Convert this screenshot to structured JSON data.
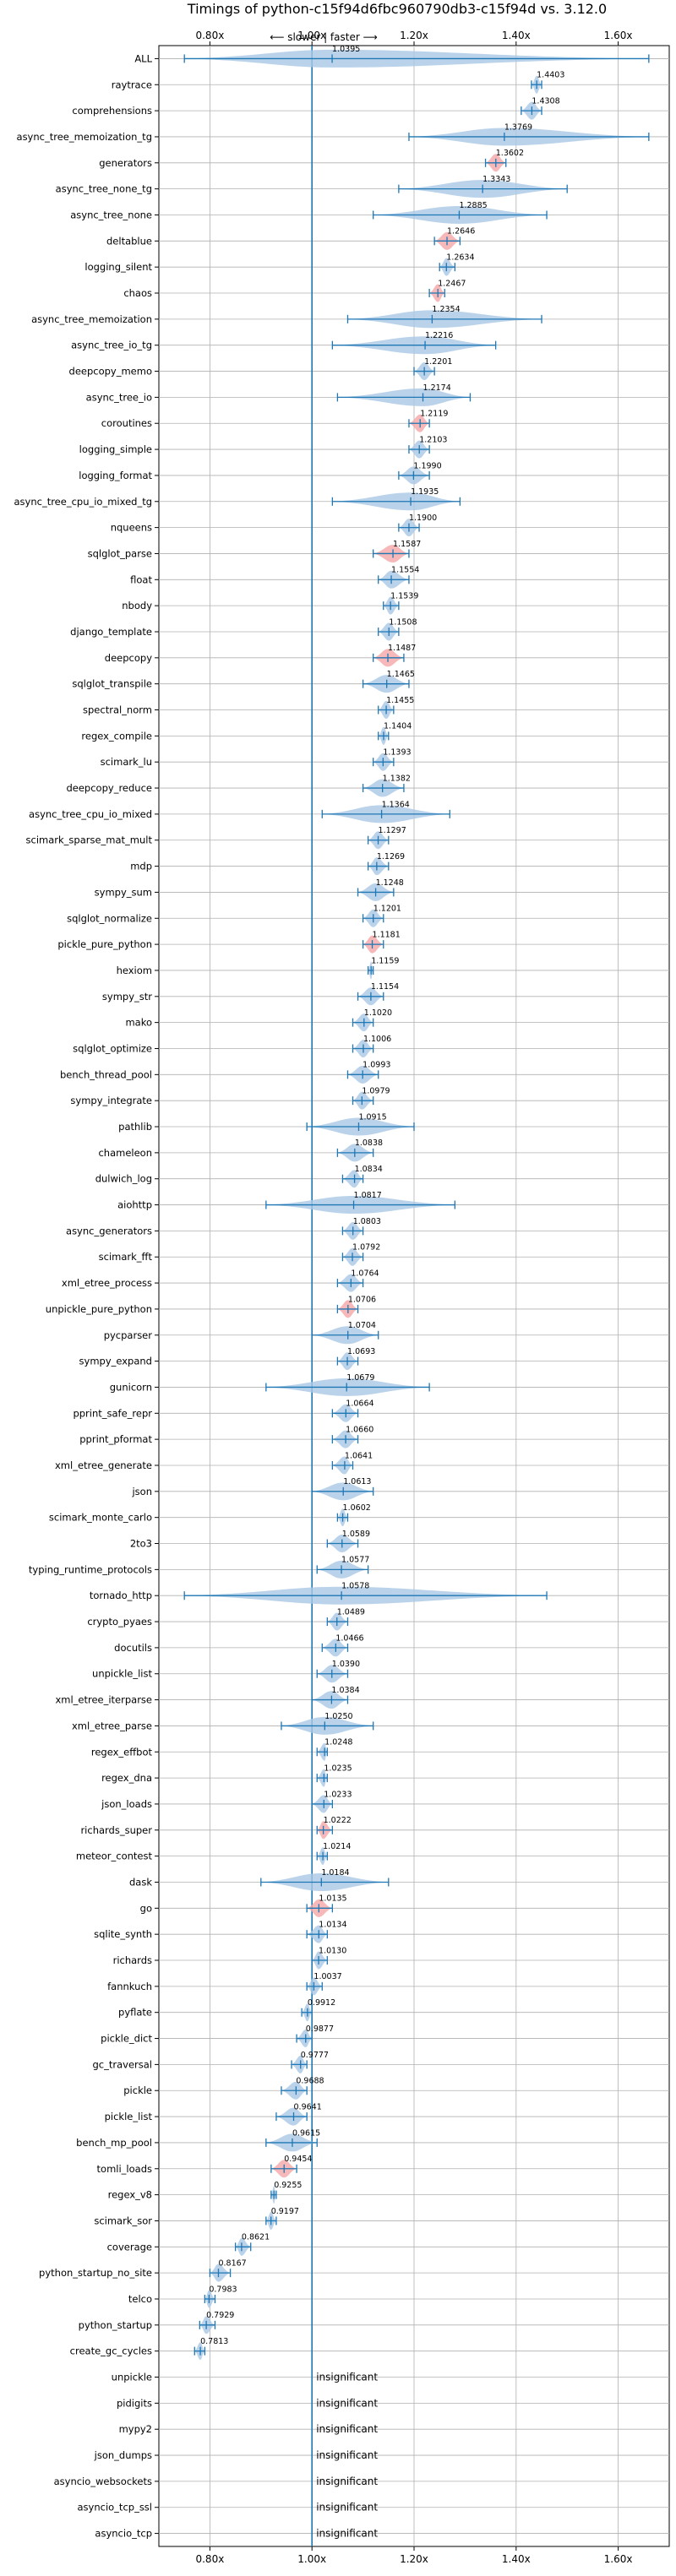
{
  "chart_data": {
    "type": "violin",
    "title": "Timings of python-c15f94d6fbc960790db3-c15f94d vs. 3.12.0",
    "direction_label": "⟵ slower | faster ⟶",
    "xlabel": "",
    "ylabel": "",
    "xlim": [
      0.7,
      1.7
    ],
    "x_ticks": [
      0.8,
      1.0,
      1.2,
      1.4,
      1.6
    ],
    "x_tick_labels": [
      "0.80x",
      "1.00x",
      "1.20x",
      "1.40x",
      "1.60x"
    ],
    "ticks_top_and_bottom": true,
    "grid": true,
    "reference_line": 1.0,
    "colors": {
      "violin": "#a9c8e6",
      "violin_highlight": "#f4a6a6",
      "errorbar": "#1f77b4",
      "line": "#1f77b4",
      "grid": "#b0b0b0"
    },
    "insignificant_label": "insignificant",
    "benchmarks": [
      {
        "name": "ALL",
        "value": 1.0395,
        "label": "1.0395",
        "lo": 0.75,
        "hi": 1.66,
        "spread": 0.06
      },
      {
        "name": "raytrace",
        "value": 1.4403,
        "label": "1.4403",
        "lo": 1.43,
        "hi": 1.45,
        "spread": 0.01
      },
      {
        "name": "comprehensions",
        "value": 1.4308,
        "label": "1.4308",
        "lo": 1.41,
        "hi": 1.45,
        "spread": 0.02
      },
      {
        "name": "async_tree_memoization_tg",
        "value": 1.3769,
        "label": "1.3769",
        "lo": 1.19,
        "hi": 1.66,
        "spread": 0.2
      },
      {
        "name": "generators",
        "value": 1.3602,
        "label": "1.3602",
        "lo": 1.34,
        "hi": 1.38,
        "spread": 0.02,
        "highlight": true
      },
      {
        "name": "async_tree_none_tg",
        "value": 1.3343,
        "label": "1.3343",
        "lo": 1.17,
        "hi": 1.5,
        "spread": 0.12
      },
      {
        "name": "async_tree_none",
        "value": 1.2885,
        "label": "1.2885",
        "lo": 1.12,
        "hi": 1.46,
        "spread": 0.14
      },
      {
        "name": "deltablue",
        "value": 1.2646,
        "label": "1.2646",
        "lo": 1.24,
        "hi": 1.29,
        "spread": 0.02,
        "highlight": true
      },
      {
        "name": "logging_silent",
        "value": 1.2634,
        "label": "1.2634",
        "lo": 1.25,
        "hi": 1.28,
        "spread": 0.01
      },
      {
        "name": "chaos",
        "value": 1.2467,
        "label": "1.2467",
        "lo": 1.23,
        "hi": 1.26,
        "spread": 0.015,
        "highlight": true
      },
      {
        "name": "async_tree_memoization",
        "value": 1.2354,
        "label": "1.2354",
        "lo": 1.07,
        "hi": 1.45,
        "spread": 0.12
      },
      {
        "name": "async_tree_io_tg",
        "value": 1.2216,
        "label": "1.2216",
        "lo": 1.04,
        "hi": 1.36,
        "spread": 0.12
      },
      {
        "name": "deepcopy_memo",
        "value": 1.2201,
        "label": "1.2201",
        "lo": 1.2,
        "hi": 1.24,
        "spread": 0.015
      },
      {
        "name": "async_tree_io",
        "value": 1.2174,
        "label": "1.2174",
        "lo": 1.05,
        "hi": 1.31,
        "spread": 0.1
      },
      {
        "name": "coroutines",
        "value": 1.2119,
        "label": "1.2119",
        "lo": 1.19,
        "hi": 1.23,
        "spread": 0.015,
        "highlight": true
      },
      {
        "name": "logging_simple",
        "value": 1.2103,
        "label": "1.2103",
        "lo": 1.19,
        "hi": 1.23,
        "spread": 0.015
      },
      {
        "name": "logging_format",
        "value": 1.199,
        "label": "1.1990",
        "lo": 1.17,
        "hi": 1.23,
        "spread": 0.02
      },
      {
        "name": "async_tree_cpu_io_mixed_tg",
        "value": 1.1935,
        "label": "1.1935",
        "lo": 1.04,
        "hi": 1.29,
        "spread": 0.1
      },
      {
        "name": "nqueens",
        "value": 1.19,
        "label": "1.1900",
        "lo": 1.17,
        "hi": 1.21,
        "spread": 0.015
      },
      {
        "name": "sqlglot_parse",
        "value": 1.1587,
        "label": "1.1587",
        "lo": 1.12,
        "hi": 1.19,
        "spread": 0.025,
        "highlight": true
      },
      {
        "name": "float",
        "value": 1.1554,
        "label": "1.1554",
        "lo": 1.13,
        "hi": 1.19,
        "spread": 0.025
      },
      {
        "name": "nbody",
        "value": 1.1539,
        "label": "1.1539",
        "lo": 1.14,
        "hi": 1.17,
        "spread": 0.015
      },
      {
        "name": "django_template",
        "value": 1.1508,
        "label": "1.1508",
        "lo": 1.13,
        "hi": 1.17,
        "spread": 0.02
      },
      {
        "name": "deepcopy",
        "value": 1.1487,
        "label": "1.1487",
        "lo": 1.12,
        "hi": 1.18,
        "spread": 0.025,
        "highlight": true
      },
      {
        "name": "sqlglot_transpile",
        "value": 1.1465,
        "label": "1.1465",
        "lo": 1.1,
        "hi": 1.19,
        "spread": 0.03
      },
      {
        "name": "spectral_norm",
        "value": 1.1455,
        "label": "1.1455",
        "lo": 1.13,
        "hi": 1.16,
        "spread": 0.01
      },
      {
        "name": "regex_compile",
        "value": 1.1404,
        "label": "1.1404",
        "lo": 1.13,
        "hi": 1.15,
        "spread": 0.01
      },
      {
        "name": "scimark_lu",
        "value": 1.1393,
        "label": "1.1393",
        "lo": 1.12,
        "hi": 1.16,
        "spread": 0.015
      },
      {
        "name": "deepcopy_reduce",
        "value": 1.1382,
        "label": "1.1382",
        "lo": 1.1,
        "hi": 1.18,
        "spread": 0.03
      },
      {
        "name": "async_tree_cpu_io_mixed",
        "value": 1.1364,
        "label": "1.1364",
        "lo": 1.02,
        "hi": 1.27,
        "spread": 0.1
      },
      {
        "name": "scimark_sparse_mat_mult",
        "value": 1.1297,
        "label": "1.1297",
        "lo": 1.11,
        "hi": 1.15,
        "spread": 0.015
      },
      {
        "name": "mdp",
        "value": 1.1269,
        "label": "1.1269",
        "lo": 1.11,
        "hi": 1.15,
        "spread": 0.015
      },
      {
        "name": "sympy_sum",
        "value": 1.1248,
        "label": "1.1248",
        "lo": 1.09,
        "hi": 1.16,
        "spread": 0.03
      },
      {
        "name": "sqlglot_normalize",
        "value": 1.1201,
        "label": "1.1201",
        "lo": 1.1,
        "hi": 1.14,
        "spread": 0.015
      },
      {
        "name": "pickle_pure_python",
        "value": 1.1181,
        "label": "1.1181",
        "lo": 1.1,
        "hi": 1.14,
        "spread": 0.015,
        "highlight": true
      },
      {
        "name": "hexiom",
        "value": 1.1159,
        "label": "1.1159",
        "lo": 1.11,
        "hi": 1.12,
        "spread": 0.006
      },
      {
        "name": "sympy_str",
        "value": 1.1154,
        "label": "1.1154",
        "lo": 1.09,
        "hi": 1.14,
        "spread": 0.025
      },
      {
        "name": "mako",
        "value": 1.102,
        "label": "1.1020",
        "lo": 1.08,
        "hi": 1.12,
        "spread": 0.02
      },
      {
        "name": "sqlglot_optimize",
        "value": 1.1006,
        "label": "1.1006",
        "lo": 1.08,
        "hi": 1.12,
        "spread": 0.015
      },
      {
        "name": "bench_thread_pool",
        "value": 1.0993,
        "label": "1.0993",
        "lo": 1.07,
        "hi": 1.13,
        "spread": 0.025
      },
      {
        "name": "sympy_integrate",
        "value": 1.0979,
        "label": "1.0979",
        "lo": 1.08,
        "hi": 1.12,
        "spread": 0.02
      },
      {
        "name": "pathlib",
        "value": 1.0915,
        "label": "1.0915",
        "lo": 0.99,
        "hi": 1.2,
        "spread": 0.07
      },
      {
        "name": "chameleon",
        "value": 1.0838,
        "label": "1.0838",
        "lo": 1.05,
        "hi": 1.12,
        "spread": 0.03
      },
      {
        "name": "dulwich_log",
        "value": 1.0834,
        "label": "1.0834",
        "lo": 1.06,
        "hi": 1.1,
        "spread": 0.015
      },
      {
        "name": "aiohttp",
        "value": 1.0817,
        "label": "1.0817",
        "lo": 0.91,
        "hi": 1.28,
        "spread": 0.15
      },
      {
        "name": "async_generators",
        "value": 1.0803,
        "label": "1.0803",
        "lo": 1.06,
        "hi": 1.1,
        "spread": 0.015
      },
      {
        "name": "scimark_fft",
        "value": 1.0792,
        "label": "1.0792",
        "lo": 1.06,
        "hi": 1.1,
        "spread": 0.015
      },
      {
        "name": "xml_etree_process",
        "value": 1.0764,
        "label": "1.0764",
        "lo": 1.05,
        "hi": 1.1,
        "spread": 0.02
      },
      {
        "name": "unpickle_pure_python",
        "value": 1.0706,
        "label": "1.0706",
        "lo": 1.05,
        "hi": 1.09,
        "spread": 0.015,
        "highlight": true
      },
      {
        "name": "pycparser",
        "value": 1.0704,
        "label": "1.0704",
        "lo": 1.0,
        "hi": 1.13,
        "spread": 0.05
      },
      {
        "name": "sympy_expand",
        "value": 1.0693,
        "label": "1.0693",
        "lo": 1.05,
        "hi": 1.09,
        "spread": 0.015
      },
      {
        "name": "gunicorn",
        "value": 1.0679,
        "label": "1.0679",
        "lo": 0.91,
        "hi": 1.23,
        "spread": 0.12
      },
      {
        "name": "pprint_safe_repr",
        "value": 1.0664,
        "label": "1.0664",
        "lo": 1.04,
        "hi": 1.09,
        "spread": 0.02
      },
      {
        "name": "pprint_pformat",
        "value": 1.066,
        "label": "1.0660",
        "lo": 1.04,
        "hi": 1.09,
        "spread": 0.02
      },
      {
        "name": "xml_etree_generate",
        "value": 1.0641,
        "label": "1.0641",
        "lo": 1.04,
        "hi": 1.08,
        "spread": 0.015
      },
      {
        "name": "json",
        "value": 1.0613,
        "label": "1.0613",
        "lo": 1.0,
        "hi": 1.12,
        "spread": 0.05
      },
      {
        "name": "scimark_monte_carlo",
        "value": 1.0602,
        "label": "1.0602",
        "lo": 1.05,
        "hi": 1.07,
        "spread": 0.01
      },
      {
        "name": "2to3",
        "value": 1.0589,
        "label": "1.0589",
        "lo": 1.03,
        "hi": 1.09,
        "spread": 0.025
      },
      {
        "name": "typing_runtime_protocols",
        "value": 1.0577,
        "label": "1.0577",
        "lo": 1.01,
        "hi": 1.11,
        "spread": 0.04
      },
      {
        "name": "tornado_http",
        "value": 1.0578,
        "label": "1.0578",
        "lo": 0.75,
        "hi": 1.46,
        "spread": 0.25
      },
      {
        "name": "crypto_pyaes",
        "value": 1.0489,
        "label": "1.0489",
        "lo": 1.03,
        "hi": 1.07,
        "spread": 0.015
      },
      {
        "name": "docutils",
        "value": 1.0466,
        "label": "1.0466",
        "lo": 1.02,
        "hi": 1.07,
        "spread": 0.02
      },
      {
        "name": "unpickle_list",
        "value": 1.039,
        "label": "1.0390",
        "lo": 1.01,
        "hi": 1.07,
        "spread": 0.025
      },
      {
        "name": "xml_etree_iterparse",
        "value": 1.0384,
        "label": "1.0384",
        "lo": 1.0,
        "hi": 1.07,
        "spread": 0.035
      },
      {
        "name": "xml_etree_parse",
        "value": 1.025,
        "label": "1.0250",
        "lo": 0.94,
        "hi": 1.12,
        "spread": 0.07
      },
      {
        "name": "regex_effbot",
        "value": 1.0248,
        "label": "1.0248",
        "lo": 1.01,
        "hi": 1.03,
        "spread": 0.008
      },
      {
        "name": "regex_dna",
        "value": 1.0235,
        "label": "1.0235",
        "lo": 1.01,
        "hi": 1.03,
        "spread": 0.008
      },
      {
        "name": "json_loads",
        "value": 1.0233,
        "label": "1.0233",
        "lo": 1.0,
        "hi": 1.04,
        "spread": 0.015
      },
      {
        "name": "richards_super",
        "value": 1.0222,
        "label": "1.0222",
        "lo": 1.01,
        "hi": 1.04,
        "spread": 0.012,
        "highlight": true
      },
      {
        "name": "meteor_contest",
        "value": 1.0214,
        "label": "1.0214",
        "lo": 1.01,
        "hi": 1.03,
        "spread": 0.006
      },
      {
        "name": "dask",
        "value": 1.0184,
        "label": "1.0184",
        "lo": 0.9,
        "hi": 1.15,
        "spread": 0.1
      },
      {
        "name": "go",
        "value": 1.0135,
        "label": "1.0135",
        "lo": 0.99,
        "hi": 1.04,
        "spread": 0.02,
        "highlight": true
      },
      {
        "name": "sqlite_synth",
        "value": 1.0134,
        "label": "1.0134",
        "lo": 0.99,
        "hi": 1.03,
        "spread": 0.015
      },
      {
        "name": "richards",
        "value": 1.013,
        "label": "1.0130",
        "lo": 1.0,
        "hi": 1.03,
        "spread": 0.012
      },
      {
        "name": "fannkuch",
        "value": 1.0037,
        "label": "1.0037",
        "lo": 0.99,
        "hi": 1.02,
        "spread": 0.01
      },
      {
        "name": "pyflate",
        "value": 0.9912,
        "label": "0.9912",
        "lo": 0.98,
        "hi": 1.0,
        "spread": 0.008
      },
      {
        "name": "pickle_dict",
        "value": 0.9877,
        "label": "0.9877",
        "lo": 0.97,
        "hi": 1.0,
        "spread": 0.012
      },
      {
        "name": "gc_traversal",
        "value": 0.9777,
        "label": "0.9777",
        "lo": 0.96,
        "hi": 0.99,
        "spread": 0.012
      },
      {
        "name": "pickle",
        "value": 0.9688,
        "label": "0.9688",
        "lo": 0.94,
        "hi": 0.99,
        "spread": 0.02
      },
      {
        "name": "pickle_list",
        "value": 0.9641,
        "label": "0.9641",
        "lo": 0.93,
        "hi": 0.99,
        "spread": 0.02
      },
      {
        "name": "bench_mp_pool",
        "value": 0.9615,
        "label": "0.9615",
        "lo": 0.91,
        "hi": 1.01,
        "spread": 0.04
      },
      {
        "name": "tomli_loads",
        "value": 0.9454,
        "label": "0.9454",
        "lo": 0.92,
        "hi": 0.97,
        "spread": 0.025,
        "highlight": true
      },
      {
        "name": "regex_v8",
        "value": 0.9255,
        "label": "0.9255",
        "lo": 0.92,
        "hi": 0.93,
        "spread": 0.006
      },
      {
        "name": "scimark_sor",
        "value": 0.9197,
        "label": "0.9197",
        "lo": 0.91,
        "hi": 0.93,
        "spread": 0.006
      },
      {
        "name": "coverage",
        "value": 0.8621,
        "label": "0.8621",
        "lo": 0.85,
        "hi": 0.88,
        "spread": 0.012
      },
      {
        "name": "python_startup_no_site",
        "value": 0.8167,
        "label": "0.8167",
        "lo": 0.8,
        "hi": 0.84,
        "spread": 0.015
      },
      {
        "name": "telco",
        "value": 0.7983,
        "label": "0.7983",
        "lo": 0.79,
        "hi": 0.81,
        "spread": 0.008
      },
      {
        "name": "python_startup",
        "value": 0.7929,
        "label": "0.7929",
        "lo": 0.78,
        "hi": 0.81,
        "spread": 0.012
      },
      {
        "name": "create_gc_cycles",
        "value": 0.7813,
        "label": "0.7813",
        "lo": 0.77,
        "hi": 0.79,
        "spread": 0.01
      },
      {
        "name": "unpickle",
        "insignificant": true
      },
      {
        "name": "pidigits",
        "insignificant": true
      },
      {
        "name": "mypy2",
        "insignificant": true
      },
      {
        "name": "json_dumps",
        "insignificant": true
      },
      {
        "name": "asyncio_websockets",
        "insignificant": true
      },
      {
        "name": "asyncio_tcp_ssl",
        "insignificant": true
      },
      {
        "name": "asyncio_tcp",
        "insignificant": true
      }
    ]
  }
}
